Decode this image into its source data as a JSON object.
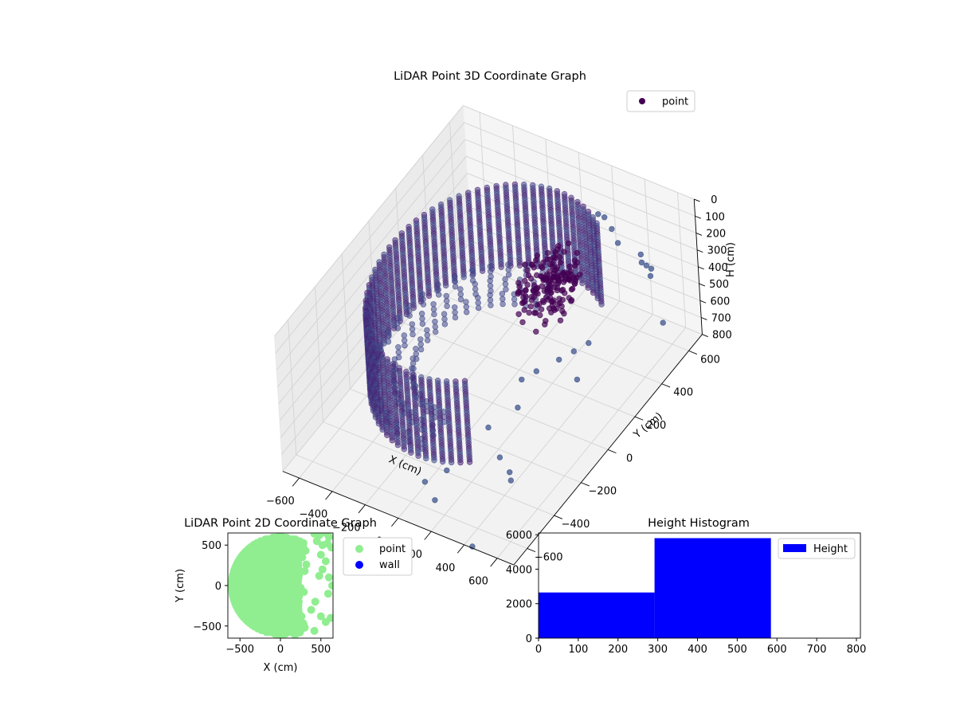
{
  "chart_data": [
    {
      "type": "scatter",
      "projection": "3d",
      "title": "LiDAR Point 3D Coordinate Graph",
      "xlabel": "X (cm)",
      "ylabel": "Y (cm)",
      "zlabel": "H (cm)",
      "xlim": [
        -700,
        700
      ],
      "ylim": [
        -700,
        700
      ],
      "zlim": [
        800,
        0
      ],
      "z_inverted": true,
      "xticks": [
        -600,
        -400,
        -200,
        0,
        200,
        400,
        600
      ],
      "yticks": [
        -600,
        -400,
        -200,
        0,
        200,
        400,
        600
      ],
      "zticks": [
        0,
        100,
        200,
        300,
        400,
        500,
        600,
        700,
        800
      ],
      "grid": true,
      "legend": {
        "position": "top-right",
        "entries": [
          "point"
        ]
      },
      "colors": {
        "point": "#440154",
        "point_light": "#3b528b"
      },
      "series": [
        {
          "name": "point",
          "description_values": {
            "wall_radius": 600,
            "wall_angle_range_deg": [
              60,
              300
            ],
            "wall_height_range": [
              90,
              580
            ],
            "roof_blob_center": [
              220,
              200
            ],
            "roof_blob_height_range": [
              120,
              330
            ]
          },
          "outliers": [
            {
              "x": 170,
              "y": 620,
              "h": 220
            },
            {
              "x": 190,
              "y": 640,
              "h": 250
            },
            {
              "x": 240,
              "y": 630,
              "h": 290
            },
            {
              "x": 300,
              "y": 600,
              "h": 320
            },
            {
              "x": 420,
              "y": 620,
              "h": 360
            },
            {
              "x": 440,
              "y": 600,
              "h": 380
            },
            {
              "x": 460,
              "y": 610,
              "h": 400
            },
            {
              "x": 480,
              "y": 620,
              "h": 420
            },
            {
              "x": 490,
              "y": 600,
              "h": 440
            },
            {
              "x": 640,
              "y": 500,
              "h": 560
            },
            {
              "x": 350,
              "y": 300,
              "h": 600
            },
            {
              "x": 300,
              "y": 250,
              "h": 620
            },
            {
              "x": 250,
              "y": 200,
              "h": 640
            },
            {
              "x": 400,
              "y": 150,
              "h": 650
            },
            {
              "x": 150,
              "y": 150,
              "h": 700
            },
            {
              "x": 100,
              "y": 100,
              "h": 720
            },
            {
              "x": 200,
              "y": -50,
              "h": 700
            },
            {
              "x": 100,
              "y": -150,
              "h": 760
            },
            {
              "x": 250,
              "y": -250,
              "h": 780
            },
            {
              "x": 350,
              "y": -300,
              "h": 780
            },
            {
              "x": 400,
              "y": -350,
              "h": 760
            },
            {
              "x": 50,
              "y": -400,
              "h": 790
            },
            {
              "x": 0,
              "y": -500,
              "h": 780
            },
            {
              "x": 100,
              "y": -550,
              "h": 800
            },
            {
              "x": 450,
              "y": -700,
              "h": 790
            }
          ]
        }
      ]
    },
    {
      "type": "scatter",
      "title": "LiDAR Point 2D Coordinate Graph",
      "xlabel": "X (cm)",
      "ylabel": "Y (cm)",
      "xlim": [
        -650,
        650
      ],
      "ylim": [
        -650,
        650
      ],
      "xticks": [
        -500,
        0,
        500
      ],
      "yticks": [
        -500,
        0,
        500
      ],
      "grid": false,
      "legend": {
        "position": "outside-right",
        "entries": [
          "point",
          "wall"
        ]
      },
      "colors": {
        "point": "#90ee90",
        "wall": "#0000ff"
      },
      "series": [
        {
          "name": "point",
          "region": {
            "radius": 600,
            "right_edge_x": 230
          },
          "scattered": [
            {
              "x": 420,
              "y": 640
            },
            {
              "x": 480,
              "y": 620
            },
            {
              "x": 560,
              "y": 650
            },
            {
              "x": 600,
              "y": 600
            },
            {
              "x": 450,
              "y": 550
            },
            {
              "x": 520,
              "y": 500
            },
            {
              "x": 580,
              "y": 520
            },
            {
              "x": 630,
              "y": 470
            },
            {
              "x": 500,
              "y": 380
            },
            {
              "x": 560,
              "y": 300
            },
            {
              "x": 480,
              "y": 120
            },
            {
              "x": 520,
              "y": 200
            },
            {
              "x": 600,
              "y": 100
            },
            {
              "x": 640,
              "y": 0
            },
            {
              "x": 590,
              "y": -100
            },
            {
              "x": 430,
              "y": -200
            },
            {
              "x": 380,
              "y": -300
            },
            {
              "x": 500,
              "y": -380
            },
            {
              "x": 560,
              "y": -450
            },
            {
              "x": 620,
              "y": -400
            },
            {
              "x": 300,
              "y": -520
            },
            {
              "x": 240,
              "y": -580
            },
            {
              "x": 180,
              "y": -610
            },
            {
              "x": 420,
              "y": -560
            },
            {
              "x": 300,
              "y": 180
            },
            {
              "x": 320,
              "y": 260
            },
            {
              "x": 270,
              "y": 350
            },
            {
              "x": 310,
              "y": 430
            },
            {
              "x": 250,
              "y": -30
            },
            {
              "x": 290,
              "y": -80
            },
            {
              "x": 260,
              "y": -380
            },
            {
              "x": 220,
              "y": -450
            }
          ]
        },
        {
          "name": "wall",
          "values": []
        }
      ]
    },
    {
      "type": "bar",
      "subtype": "histogram",
      "title": "Height Histogram",
      "xlabel": "",
      "ylabel": "",
      "xlim": [
        0,
        810
      ],
      "ylim": [
        0,
        6100
      ],
      "xticks": [
        0,
        100,
        200,
        300,
        400,
        500,
        600,
        700,
        800
      ],
      "yticks": [
        0,
        2000,
        4000,
        6000
      ],
      "grid": false,
      "legend": {
        "position": "top-right",
        "entries": [
          "Height"
        ]
      },
      "colors": {
        "Height": "#0000ff"
      },
      "series": [
        {
          "name": "Height",
          "bins": [
            {
              "x0": 0,
              "x1": 292,
              "count": 2650
            },
            {
              "x0": 292,
              "x1": 585,
              "count": 5800
            }
          ]
        }
      ]
    }
  ]
}
